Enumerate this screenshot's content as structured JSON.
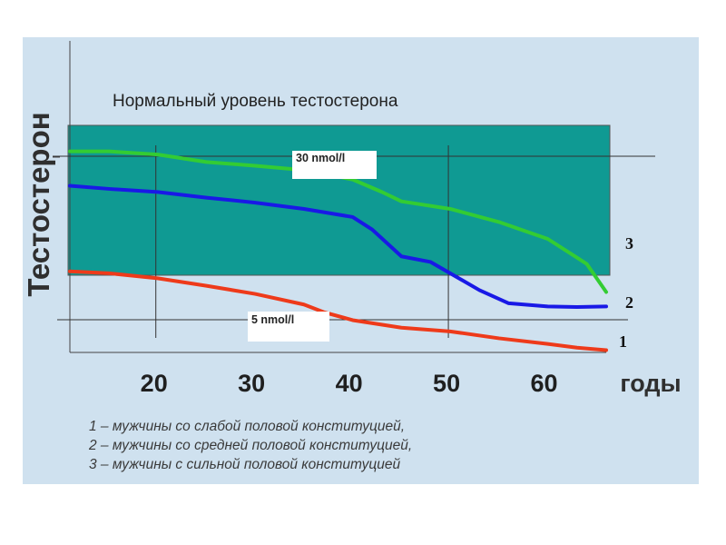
{
  "chart_data": {
    "type": "line",
    "title": "Нормальный уровень тестостерона",
    "ylabel": "Тестостерон",
    "xlabel": "годы",
    "x_ticks": [
      20,
      30,
      40,
      50,
      60
    ],
    "xlim": [
      11,
      66
    ],
    "ylim": [
      0,
      34
    ],
    "normal_band": [
      8,
      30
    ],
    "reference_lines": [
      {
        "value": 30,
        "label": "30 nmol/l"
      },
      {
        "value": 5,
        "label": "5 nmol/l"
      }
    ],
    "grid_x": [
      20,
      50
    ],
    "series": [
      {
        "name": "3",
        "color": "#33cc33",
        "x": [
          11,
          15,
          20,
          25,
          30,
          35,
          40,
          43,
          45,
          50,
          55,
          60,
          64,
          66
        ],
        "y": [
          31,
          31,
          30.5,
          29.3,
          28.7,
          28,
          26.5,
          24.5,
          23,
          21.8,
          19.7,
          17,
          13,
          8.5
        ]
      },
      {
        "name": "2",
        "color": "#1919e6",
        "x": [
          11,
          15,
          20,
          25,
          30,
          35,
          40,
          42,
          45,
          48,
          50,
          53,
          56,
          60,
          63,
          66
        ],
        "y": [
          25.5,
          25,
          24.5,
          23.6,
          22.8,
          21.8,
          20.5,
          18.5,
          14.2,
          13.3,
          11.5,
          8.8,
          6.7,
          6.2,
          6.1,
          6.2
        ]
      },
      {
        "name": "1",
        "color": "#ee3a1a",
        "x": [
          11,
          15,
          20,
          25,
          30,
          35,
          37,
          40,
          45,
          50,
          55,
          60,
          63,
          66
        ],
        "y": [
          11.8,
          11.5,
          10.7,
          9.5,
          8.2,
          6.5,
          5.3,
          4,
          2.8,
          2.2,
          1.1,
          0.2,
          -0.4,
          -0.8
        ]
      }
    ]
  },
  "legend_lines": [
    "1 – мужчины со слабой половой конституцией,",
    "2 – мужчины со средней половой конституцией,",
    "3 – мужчины с сильной половой конституцией"
  ]
}
